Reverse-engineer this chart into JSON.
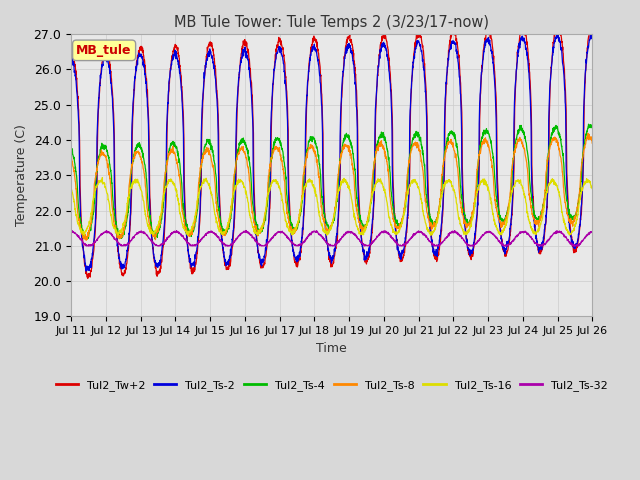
{
  "title": "MB Tule Tower: Tule Temps 2 (3/23/17-now)",
  "xlabel": "Time",
  "ylabel": "Temperature (C)",
  "ylim": [
    19.0,
    27.0
  ],
  "yticks": [
    19.0,
    20.0,
    21.0,
    22.0,
    23.0,
    24.0,
    25.0,
    26.0,
    27.0
  ],
  "xlim": [
    0,
    15
  ],
  "xtick_labels": [
    "Jul 11",
    "Jul 12",
    "Jul 13",
    "Jul 14",
    "Jul 15",
    "Jul 16",
    "Jul 17",
    "Jul 18",
    "Jul 19",
    "Jul 20",
    "Jul 21",
    "Jul 22",
    "Jul 23",
    "Jul 24",
    "Jul 25",
    "Jul 26"
  ],
  "background_color": "#d8d8d8",
  "plot_bg_color": "#e8e8e8",
  "legend_label": "MB_tule",
  "legend_label_color": "#cc0000",
  "legend_label_bg": "#ffff99",
  "series": [
    {
      "label": "Tul2_Tw+2",
      "color": "#dd0000"
    },
    {
      "label": "Tul2_Ts-2",
      "color": "#0000dd"
    },
    {
      "label": "Tul2_Ts-4",
      "color": "#00bb00"
    },
    {
      "label": "Tul2_Ts-8",
      "color": "#ff8800"
    },
    {
      "label": "Tul2_Ts-16",
      "color": "#dddd00"
    },
    {
      "label": "Tul2_Ts-32",
      "color": "#aa00aa"
    }
  ]
}
